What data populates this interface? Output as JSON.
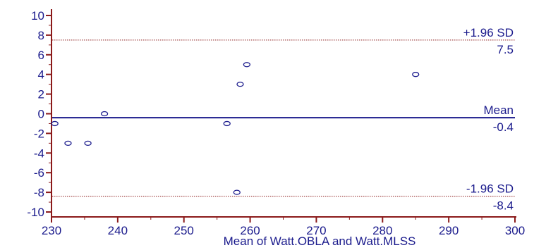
{
  "chart_data": {
    "type": "scatter",
    "title": "",
    "xlabel": "Mean of Watt.OBLA and Watt.MLSS",
    "ylabel": "",
    "xlim": [
      230,
      300
    ],
    "ylim": [
      -10.5,
      10.5
    ],
    "x_ticks": [
      230,
      240,
      250,
      260,
      270,
      280,
      290,
      300
    ],
    "y_ticks": [
      10,
      8,
      6,
      4,
      2,
      0,
      -2,
      -4,
      -6,
      -8,
      -10
    ],
    "points": [
      {
        "x": 230.5,
        "y": -1
      },
      {
        "x": 232.5,
        "y": -3
      },
      {
        "x": 235.5,
        "y": -3
      },
      {
        "x": 238,
        "y": 0
      },
      {
        "x": 256.5,
        "y": -1
      },
      {
        "x": 258,
        "y": -8
      },
      {
        "x": 258.5,
        "y": 3
      },
      {
        "x": 259.5,
        "y": 5
      },
      {
        "x": 285,
        "y": 4
      }
    ],
    "reference_lines": [
      {
        "label": "+1.96 SD",
        "value_label": "7.5",
        "y": 7.5,
        "style": "dotted",
        "color": "#8b1a1a"
      },
      {
        "label": "Mean",
        "value_label": "-0.4",
        "y": -0.4,
        "style": "solid",
        "color": "#1a1a8c"
      },
      {
        "label": "-1.96 SD",
        "value_label": "-8.4",
        "y": -8.4,
        "style": "dotted",
        "color": "#8b1a1a"
      }
    ],
    "colors": {
      "axis": "#8b1a1a",
      "text": "#1a1a8c",
      "points": "#1a1a8c"
    }
  }
}
